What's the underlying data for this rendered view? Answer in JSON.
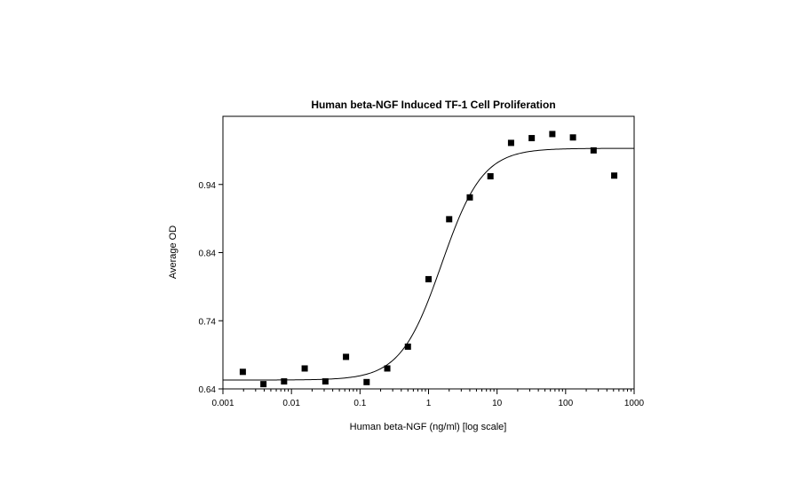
{
  "chart_data": {
    "type": "scatter",
    "title": "Human beta-NGF Induced TF-1 Cell Proliferation",
    "xlabel": "Human beta-NGF (ng/ml) [log scale]",
    "ylabel": "Average OD",
    "x_scale": "log",
    "xlim": [
      0.001,
      1000
    ],
    "ylim": [
      0.64,
      1.0
    ],
    "x_ticks": [
      "0.001",
      "0.01",
      "0.1",
      "1",
      "10",
      "100",
      "1000"
    ],
    "y_ticks": [
      "0.64",
      "0.74",
      "0.84",
      "0.94"
    ],
    "grid": false,
    "legend": "none",
    "colors": {
      "points": "#000000",
      "curve": "#000000",
      "frame": "#000000"
    },
    "series": [
      {
        "kind": "points",
        "points": [
          {
            "x": 0.00195,
            "y": 0.665
          },
          {
            "x": 0.0039,
            "y": 0.647
          },
          {
            "x": 0.0078,
            "y": 0.651
          },
          {
            "x": 0.0156,
            "y": 0.67
          },
          {
            "x": 0.03125,
            "y": 0.651
          },
          {
            "x": 0.0625,
            "y": 0.687
          },
          {
            "x": 0.125,
            "y": 0.65
          },
          {
            "x": 0.25,
            "y": 0.67
          },
          {
            "x": 0.5,
            "y": 0.702
          },
          {
            "x": 1.0,
            "y": 0.801
          },
          {
            "x": 2.0,
            "y": 0.889
          },
          {
            "x": 4.0,
            "y": 0.921
          },
          {
            "x": 8.0,
            "y": 0.952
          },
          {
            "x": 16.0,
            "y": 1.001
          },
          {
            "x": 32.0,
            "y": 1.008
          },
          {
            "x": 64.0,
            "y": 1.014
          },
          {
            "x": 128.0,
            "y": 1.009
          },
          {
            "x": 256.0,
            "y": 0.99
          },
          {
            "x": 512.0,
            "y": 0.953
          }
        ]
      },
      {
        "kind": "fit-curve",
        "model": "4-parameter logistic",
        "bottom": 0.653,
        "top": 0.993,
        "ec50": 1.55,
        "hill": 1.45
      }
    ]
  }
}
